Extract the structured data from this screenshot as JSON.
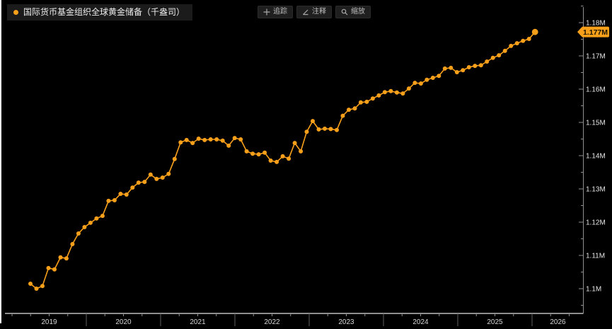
{
  "app": {
    "background": "#000000",
    "accent": "#f9a01b",
    "axis_color": "#8f8f8f",
    "tick_label_color": "#e6e6e6",
    "year_label_color": "#d6d6d6"
  },
  "legend": {
    "marker_icon": "series-dot-icon",
    "label": "国际货币基金组织全球黄金储备（千盎司）"
  },
  "toolbar": {
    "buttons": [
      {
        "icon": "crosshair-icon",
        "label": "追踪"
      },
      {
        "icon": "pencil-icon",
        "label": "注释"
      },
      {
        "icon": "magnifier-icon",
        "label": "缩放"
      }
    ]
  },
  "chart_data": {
    "type": "line",
    "title": "国际货币基金组织全球黄金储备（千盎司）",
    "unit": "thousand ounces (M = millions)",
    "frequency": "monthly",
    "grid": false,
    "legend_position": "top-left",
    "x_axis": {
      "position": "bottom",
      "labels": [
        "2019",
        "2020",
        "2021",
        "2022",
        "2023",
        "2024",
        "2025",
        "2026"
      ]
    },
    "y_axis": {
      "position": "right",
      "range": [
        1.0975,
        1.1875
      ],
      "major_tick_labels": [
        "1.18M",
        "1.17M",
        "1.16M",
        "1.15M",
        "1.14M",
        "1.13M",
        "1.12M",
        "1.11M",
        "1.1M"
      ],
      "major_step": 0.01,
      "minor_step": 0.005
    },
    "last_value_label": "1.177M",
    "series": [
      {
        "name": "国际货币基金组织全球黄金储备（千盎司）",
        "color": "#f9a01b",
        "marker": "circle",
        "values_unit_M": [
          1.1015,
          1.1,
          1.1008,
          1.1062,
          1.1058,
          1.1094,
          1.1091,
          1.1134,
          1.1166,
          1.1185,
          1.1198,
          1.1211,
          1.1219,
          1.1264,
          1.1266,
          1.1285,
          1.1283,
          1.1304,
          1.1319,
          1.1321,
          1.1343,
          1.133,
          1.1334,
          1.1345,
          1.139,
          1.144,
          1.1447,
          1.1438,
          1.1451,
          1.1447,
          1.1449,
          1.1449,
          1.1445,
          1.143,
          1.1453,
          1.1449,
          1.1413,
          1.1406,
          1.1404,
          1.1409,
          1.1385,
          1.1381,
          1.1398,
          1.1391,
          1.1438,
          1.1413,
          1.1472,
          1.1504,
          1.1479,
          1.1481,
          1.148,
          1.1477,
          1.152,
          1.1538,
          1.1542,
          1.156,
          1.1562,
          1.1572,
          1.1581,
          1.1591,
          1.1594,
          1.159,
          1.1587,
          1.1602,
          1.1619,
          1.1617,
          1.1628,
          1.1634,
          1.164,
          1.1662,
          1.1664,
          1.1651,
          1.1657,
          1.1666,
          1.167,
          1.1672,
          1.1683,
          1.1694,
          1.1702,
          1.1715,
          1.173,
          1.1738,
          1.1745,
          1.1751,
          1.1772
        ]
      }
    ]
  }
}
